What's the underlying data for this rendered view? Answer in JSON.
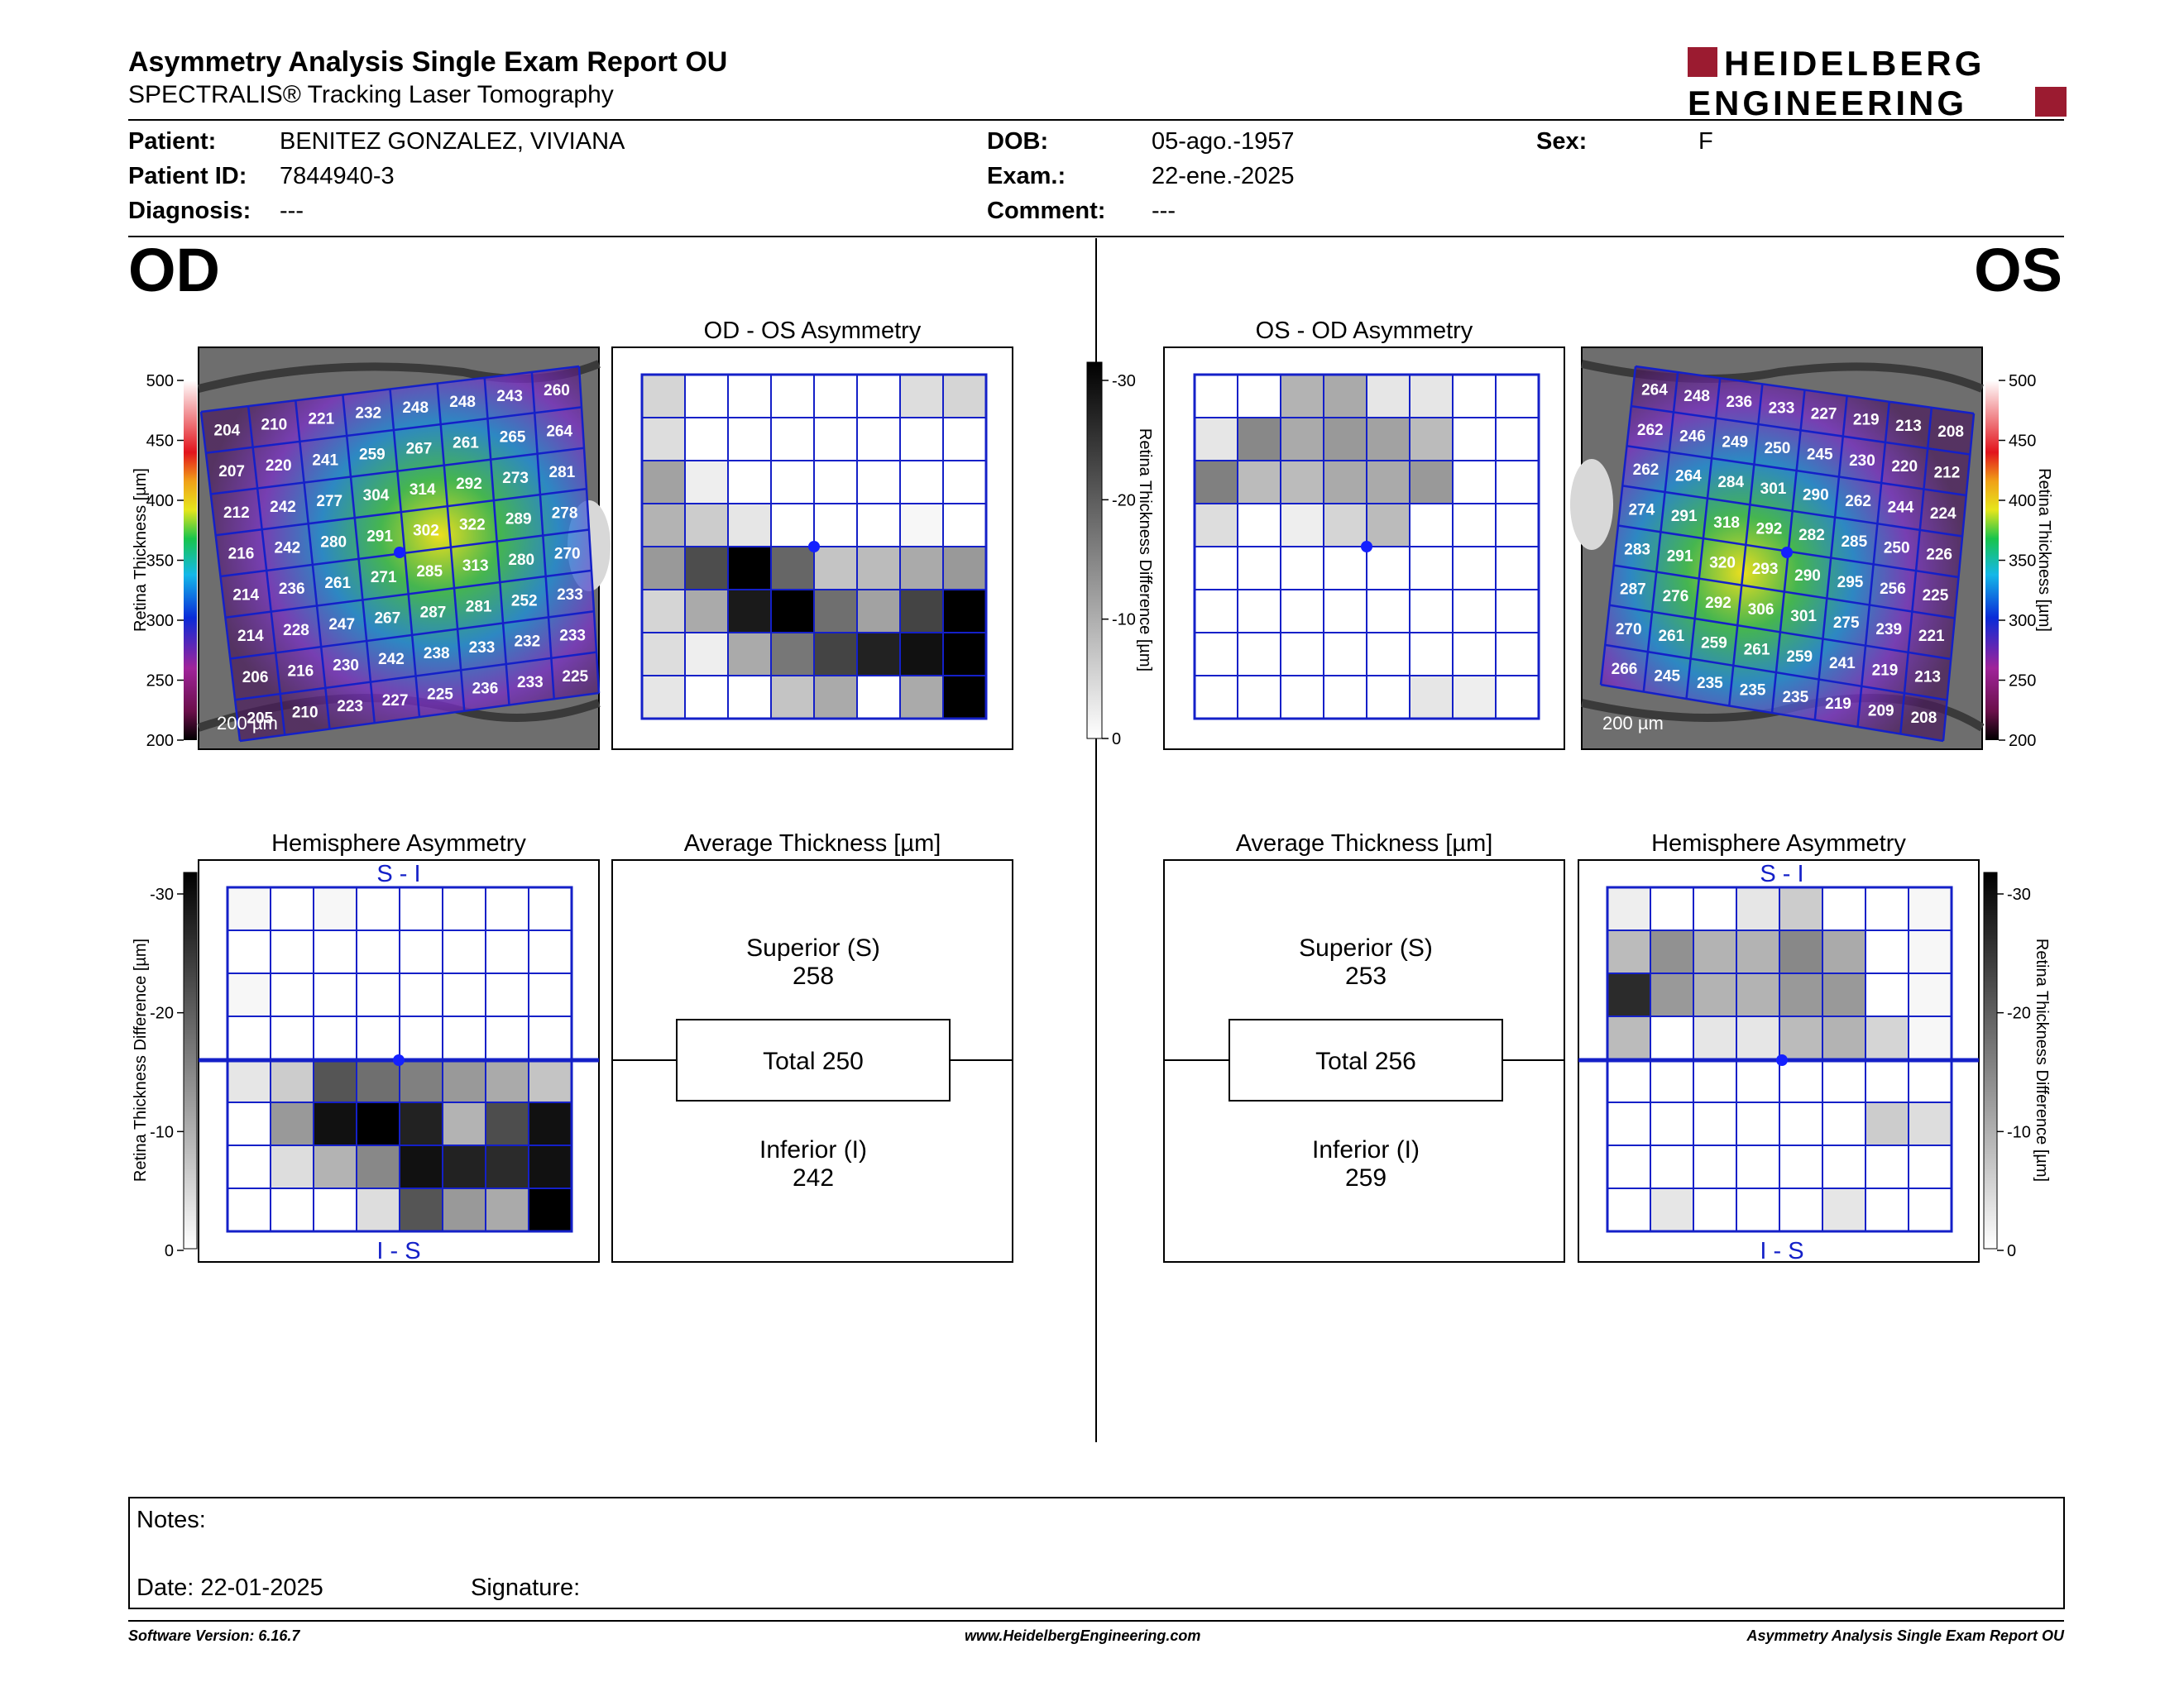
{
  "header": {
    "title": "Asymmetry Analysis Single Exam Report OU",
    "subtitle": "SPECTRALIS® Tracking Laser Tomography",
    "logo_line1": "HEIDELBERG",
    "logo_line2": "ENGINEERING",
    "brand_color": "#9b1b30"
  },
  "patient": {
    "patient_label": "Patient:",
    "patient": "BENITEZ GONZALEZ, VIVIANA",
    "id_label": "Patient ID:",
    "id": "7844940-3",
    "diagnosis_label": "Diagnosis:",
    "diagnosis": "---",
    "dob_label": "DOB:",
    "dob": "05-ago.-1957",
    "exam_label": "Exam.:",
    "exam": "22-ene.-2025",
    "comment_label": "Comment:",
    "comment": "---",
    "sex_label": "Sex:",
    "sex": "F"
  },
  "od": {
    "eye": "OD",
    "asym_title": "OD - OS Asymmetry",
    "hemi_title": "Hemisphere Asymmetry",
    "avg_title": "Average Thickness [µm]",
    "thickness_grid": [
      [
        204,
        210,
        221,
        232,
        248,
        248,
        243,
        260
      ],
      [
        207,
        220,
        241,
        259,
        267,
        261,
        265,
        264
      ],
      [
        212,
        242,
        277,
        304,
        314,
        292,
        273,
        281
      ],
      [
        216,
        242,
        280,
        291,
        302,
        322,
        289,
        278
      ],
      [
        214,
        236,
        261,
        271,
        285,
        313,
        280,
        270
      ],
      [
        214,
        228,
        247,
        267,
        287,
        281,
        252,
        233
      ],
      [
        206,
        216,
        230,
        242,
        238,
        233,
        232,
        233
      ],
      [
        205,
        210,
        223,
        227,
        225,
        236,
        233,
        225
      ]
    ],
    "asym_grid": [
      [
        5,
        0,
        0,
        0,
        0,
        0,
        4,
        5
      ],
      [
        4,
        0,
        0,
        0,
        0,
        0,
        0,
        0
      ],
      [
        11,
        2,
        0,
        0,
        0,
        0,
        0,
        0
      ],
      [
        9,
        6,
        3,
        0,
        0,
        0,
        1,
        0
      ],
      [
        12,
        21,
        30,
        18,
        7,
        8,
        10,
        12
      ],
      [
        5,
        10,
        27,
        30,
        17,
        11,
        22,
        30
      ],
      [
        4,
        2,
        10,
        16,
        22,
        26,
        28,
        30
      ],
      [
        3,
        0,
        0,
        7,
        10,
        0,
        10,
        30
      ]
    ],
    "hemi_grid": [
      [
        1,
        0,
        1,
        0,
        0,
        0,
        0,
        0
      ],
      [
        0,
        0,
        0,
        0,
        0,
        0,
        0,
        0
      ],
      [
        1,
        0,
        0,
        0,
        0,
        0,
        0,
        0
      ],
      [
        0,
        0,
        0,
        0,
        0,
        0,
        0,
        0
      ],
      [
        3,
        6,
        20,
        17,
        15,
        12,
        10,
        7
      ],
      [
        0,
        12,
        28,
        30,
        26,
        9,
        21,
        28
      ],
      [
        0,
        4,
        9,
        14,
        28,
        26,
        25,
        28
      ],
      [
        0,
        0,
        0,
        4,
        20,
        12,
        10,
        30
      ]
    ],
    "superior_label": "Superior (S)",
    "superior": "258",
    "total": "Total 250",
    "inferior_label": "Inferior (I)",
    "inferior": "242",
    "scale_label": "200 µm"
  },
  "os": {
    "eye": "OS",
    "asym_title": "OS - OD Asymmetry",
    "hemi_title": "Hemisphere Asymmetry",
    "avg_title": "Average Thickness [µm]",
    "thickness_grid": [
      [
        264,
        248,
        236,
        233,
        227,
        219,
        213,
        208
      ],
      [
        262,
        246,
        249,
        250,
        245,
        230,
        220,
        212
      ],
      [
        262,
        264,
        284,
        301,
        290,
        262,
        244,
        224
      ],
      [
        274,
        291,
        318,
        292,
        282,
        285,
        250,
        226
      ],
      [
        283,
        291,
        320,
        293,
        290,
        295,
        256,
        225
      ],
      [
        287,
        276,
        292,
        306,
        301,
        275,
        239,
        221
      ],
      [
        270,
        261,
        259,
        261,
        259,
        241,
        219,
        213
      ],
      [
        266,
        245,
        235,
        235,
        235,
        219,
        209,
        208
      ]
    ],
    "asym_grid": [
      [
        0,
        0,
        9,
        10,
        3,
        3,
        0,
        0
      ],
      [
        3,
        14,
        10,
        12,
        11,
        8,
        0,
        0
      ],
      [
        15,
        8,
        8,
        10,
        10,
        12,
        0,
        0
      ],
      [
        4,
        0,
        2,
        5,
        8,
        0,
        0,
        0
      ],
      [
        0,
        0,
        0,
        0,
        0,
        0,
        0,
        0
      ],
      [
        0,
        0,
        0,
        0,
        0,
        0,
        0,
        0
      ],
      [
        0,
        0,
        0,
        0,
        0,
        0,
        0,
        0
      ],
      [
        0,
        0,
        0,
        0,
        0,
        3,
        2,
        0
      ]
    ],
    "hemi_grid": [
      [
        2,
        0,
        0,
        3,
        6,
        0,
        0,
        1
      ],
      [
        8,
        13,
        9,
        9,
        14,
        10,
        0,
        1
      ],
      [
        25,
        12,
        9,
        9,
        12,
        12,
        0,
        1
      ],
      [
        8,
        0,
        3,
        3,
        8,
        9,
        5,
        1
      ],
      [
        0,
        0,
        0,
        0,
        0,
        0,
        0,
        0
      ],
      [
        0,
        0,
        0,
        0,
        0,
        0,
        6,
        4
      ],
      [
        0,
        0,
        0,
        0,
        0,
        0,
        0,
        0
      ],
      [
        0,
        3,
        0,
        0,
        0,
        3,
        0,
        0
      ]
    ],
    "superior_label": "Superior (S)",
    "superior": "253",
    "total": "Total 256",
    "inferior_label": "Inferior (I)",
    "inferior": "259",
    "scale_label": "200 µm"
  },
  "hemi_labels": {
    "top": "S - I",
    "bottom": "I - S"
  },
  "axes": {
    "thickness_label": "Retina Thickness [µm]",
    "thickness_ticks": [
      "500",
      "450",
      "400",
      "350",
      "300",
      "250",
      "200"
    ],
    "diff_label": "Retina Thickness Difference [µm]",
    "diff_ticks": [
      "-30",
      "-20",
      "-10",
      "0"
    ]
  },
  "notes": {
    "notes_label": "Notes:",
    "date_label": "Date: 22-01-2025",
    "signature_label": "Signature:"
  },
  "footer": {
    "software": "Software Version: 6.16.7",
    "website": "www.HeidelbergEngineering.com",
    "report": "Asymmetry Analysis Single Exam Report OU"
  }
}
